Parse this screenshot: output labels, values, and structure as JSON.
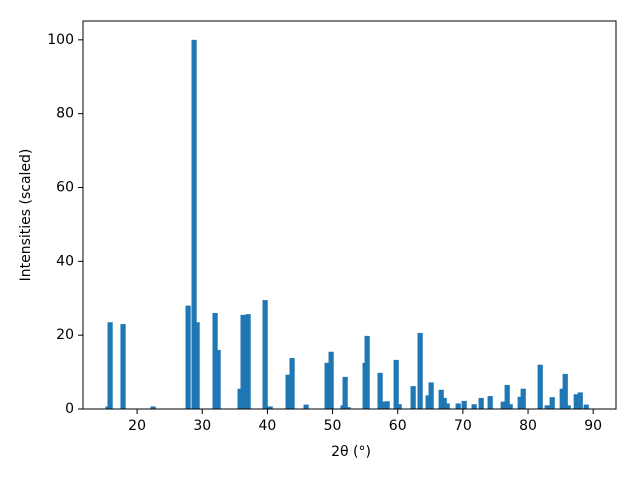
{
  "chart_data": {
    "type": "bar",
    "xlabel": "2θ (°)",
    "ylabel": "Intensities (scaled)",
    "color": "#1f77b4",
    "x": [
      15.55,
      15.86,
      17.85,
      22.46,
      27.83,
      28.75,
      29.21,
      31.97,
      32.43,
      35.81,
      36.27,
      37.04,
      39.65,
      40.42,
      43.18,
      43.79,
      45.94,
      49.17,
      49.78,
      51.62,
      51.93,
      52.39,
      55.0,
      55.31,
      57.3,
      58.07,
      58.38,
      59.76,
      60.22,
      62.37,
      63.44,
      64.67,
      65.13,
      66.67,
      67.13,
      67.59,
      69.28,
      70.2,
      71.73,
      72.81,
      74.19,
      76.19,
      76.8,
      77.26,
      78.8,
      79.26,
      81.87,
      82.94,
      83.71,
      85.25,
      85.71,
      86.17,
      87.4,
      88.01,
      88.93
    ],
    "values": [
      0.7,
      23.5,
      23,
      0.7,
      28,
      100,
      23.5,
      26,
      16,
      5.5,
      25.5,
      25.7,
      29.5,
      0.7,
      9.3,
      13.8,
      1.2,
      12.5,
      15.5,
      1,
      8.7,
      0.5,
      12.5,
      19.8,
      9.8,
      2,
      2.1,
      13.3,
      1.3,
      6.2,
      20.6,
      3.7,
      7.2,
      5.2,
      3,
      1.5,
      1.5,
      2.2,
      1.3,
      3,
      3.5,
      2,
      6.5,
      1.3,
      3.3,
      5.5,
      12,
      1,
      3.2,
      5.5,
      9.5,
      1,
      4,
      4.5,
      1.2
    ],
    "xlim": [
      11.7,
      93.5
    ],
    "ylim": [
      0,
      105.1
    ],
    "xticks": [
      20,
      30,
      40,
      50,
      60,
      70,
      80,
      90
    ],
    "yticks": [
      0,
      20,
      40,
      60,
      80,
      100
    ]
  }
}
